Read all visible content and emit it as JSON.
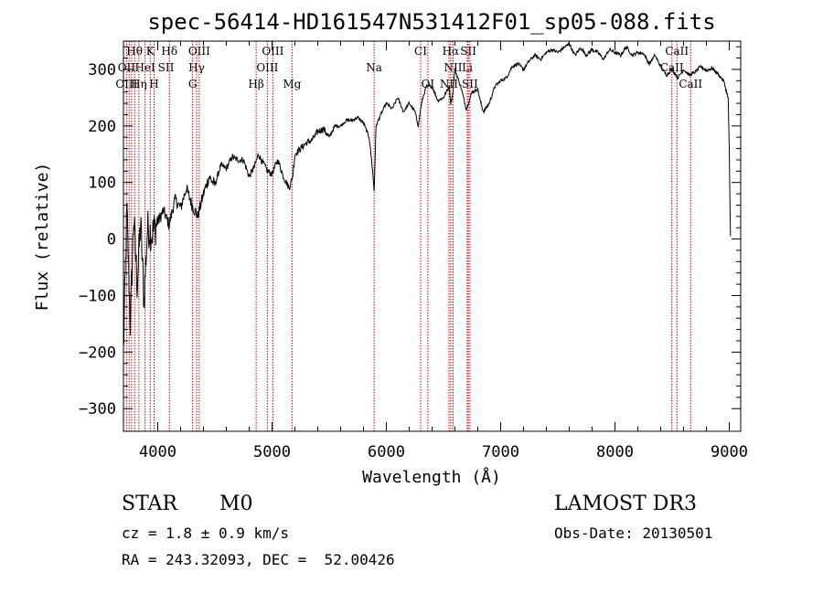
{
  "chart_data": {
    "type": "line",
    "title": "spec-56414-HD161547N531412F01_sp05-088.fits",
    "xlabel": "Wavelength (Å)",
    "ylabel": "Flux (relative)",
    "xlim": [
      3700,
      9100
    ],
    "ylim": [
      -340,
      350
    ],
    "grid": false,
    "x_ticks": [
      4000,
      5000,
      6000,
      7000,
      8000,
      9000
    ],
    "x_tick_labels": [
      "4000",
      "5000",
      "6000",
      "7000",
      "8000",
      "9000"
    ],
    "y_ticks": [
      -300,
      -200,
      -100,
      0,
      100,
      200,
      300
    ],
    "y_tick_labels": [
      "−300",
      "−200",
      "−100",
      "0",
      "100",
      "200",
      "300"
    ],
    "series": [
      {
        "name": "flux",
        "color": "#000000",
        "x": [
          3700,
          3730,
          3760,
          3790,
          3820,
          3850,
          3880,
          3910,
          3950,
          4000,
          4050,
          4100,
          4150,
          4200,
          4250,
          4300,
          4350,
          4400,
          4450,
          4500,
          4550,
          4600,
          4650,
          4700,
          4750,
          4800,
          4850,
          4880,
          4920,
          4960,
          5000,
          5050,
          5100,
          5150,
          5180,
          5200,
          5250,
          5300,
          5350,
          5400,
          5450,
          5500,
          5550,
          5600,
          5650,
          5700,
          5750,
          5800,
          5850,
          5880,
          5893,
          5900,
          5910,
          5950,
          6000,
          6050,
          6100,
          6150,
          6200,
          6250,
          6280,
          6300,
          6320,
          6350,
          6400,
          6450,
          6500,
          6550,
          6563,
          6580,
          6600,
          6650,
          6700,
          6750,
          6800,
          6820,
          6850,
          6900,
          6950,
          7000,
          7050,
          7100,
          7150,
          7200,
          7250,
          7300,
          7350,
          7400,
          7450,
          7500,
          7550,
          7600,
          7650,
          7700,
          7750,
          7800,
          7850,
          7900,
          7950,
          8000,
          8050,
          8100,
          8150,
          8200,
          8250,
          8300,
          8350,
          8400,
          8450,
          8500,
          8550,
          8600,
          8650,
          8700,
          8750,
          8800,
          8850,
          8900,
          8950,
          8990,
          9000,
          9010
        ],
        "y": [
          -200,
          50,
          -150,
          40,
          -80,
          30,
          -110,
          20,
          10,
          30,
          50,
          25,
          70,
          55,
          90,
          60,
          40,
          80,
          110,
          95,
          130,
          125,
          145,
          140,
          140,
          110,
          130,
          150,
          135,
          120,
          115,
          140,
          110,
          90,
          110,
          150,
          160,
          170,
          175,
          190,
          195,
          180,
          200,
          200,
          210,
          210,
          215,
          205,
          180,
          120,
          85,
          130,
          200,
          220,
          240,
          230,
          250,
          225,
          240,
          225,
          200,
          230,
          250,
          270,
          270,
          245,
          250,
          270,
          240,
          255,
          300,
          270,
          230,
          260,
          265,
          245,
          225,
          240,
          270,
          280,
          285,
          305,
          310,
          300,
          315,
          325,
          318,
          330,
          335,
          330,
          338,
          345,
          325,
          338,
          325,
          335,
          330,
          318,
          335,
          330,
          325,
          340,
          325,
          330,
          328,
          310,
          325,
          305,
          290,
          300,
          285,
          300,
          290,
          295,
          305,
          298,
          302,
          292,
          280,
          250,
          160,
          5
        ]
      }
    ],
    "line_labels": [
      {
        "text": "Hθ",
        "x": 3797,
        "row": 1
      },
      {
        "text": "K",
        "x": 3934,
        "row": 1
      },
      {
        "text": "Hδ",
        "x": 4102,
        "row": 1
      },
      {
        "text": "OIII",
        "x": 4363,
        "row": 1
      },
      {
        "text": "OIII",
        "x": 5007,
        "row": 1
      },
      {
        "text": "CI",
        "x": 6300,
        "row": 1
      },
      {
        "text": "Hα",
        "x": 6563,
        "row": 1
      },
      {
        "text": "SII",
        "x": 6717,
        "row": 1
      },
      {
        "text": "CaII",
        "x": 8542,
        "row": 1
      },
      {
        "text": "OII",
        "x": 3727,
        "row": 2
      },
      {
        "text": "HeI",
        "x": 3889,
        "row": 2
      },
      {
        "text": "SII",
        "x": 4072,
        "row": 2
      },
      {
        "text": "Hγ",
        "x": 4340,
        "row": 2
      },
      {
        "text": "OIII",
        "x": 4959,
        "row": 2
      },
      {
        "text": "Na",
        "x": 5893,
        "row": 2
      },
      {
        "text": "NII",
        "x": 6584,
        "row": 2
      },
      {
        "text": "Li",
        "x": 6708,
        "row": 2
      },
      {
        "text": "CaII",
        "x": 8498,
        "row": 2
      },
      {
        "text": "OIII",
        "x": 3727,
        "row": 3
      },
      {
        "text": "Hη",
        "x": 3835,
        "row": 3
      },
      {
        "text": "H",
        "x": 3968,
        "row": 3
      },
      {
        "text": "G",
        "x": 4305,
        "row": 3
      },
      {
        "text": "Hβ",
        "x": 4861,
        "row": 3
      },
      {
        "text": "Mg",
        "x": 5175,
        "row": 3
      },
      {
        "text": "OI",
        "x": 6363,
        "row": 3
      },
      {
        "text": "NII",
        "x": 6548,
        "row": 3
      },
      {
        "text": "SII",
        "x": 6731,
        "row": 3
      },
      {
        "text": "CaII",
        "x": 8662,
        "row": 3
      }
    ],
    "line_marker_wavelengths": [
      3727,
      3750,
      3771,
      3798,
      3835,
      3889,
      3934,
      3968,
      4102,
      4305,
      4340,
      4363,
      4861,
      4959,
      5007,
      5175,
      5893,
      6300,
      6363,
      6548,
      6563,
      6584,
      6708,
      6717,
      6731,
      8498,
      8542,
      8662
    ],
    "marker_color": "#cc0000"
  },
  "info": {
    "object_class": "STAR",
    "subclass": "M0",
    "survey": "LAMOST DR3",
    "redshift": "cz = 1.8 ± 0.9 km/s",
    "obs_date": "Obs-Date: 20130501",
    "coords": "RA = 243.32093, DEC =  52.00426"
  }
}
